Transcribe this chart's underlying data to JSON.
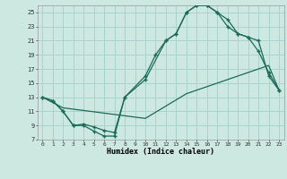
{
  "xlabel": "Humidex (Indice chaleur)",
  "background_color": "#cce8e0",
  "grid_color": "#a8d4cc",
  "line_color": "#1a6b5a",
  "xlim": [
    -0.5,
    23.5
  ],
  "ylim": [
    7,
    26
  ],
  "xticks": [
    0,
    1,
    2,
    3,
    4,
    5,
    6,
    7,
    8,
    9,
    10,
    11,
    12,
    13,
    14,
    15,
    16,
    17,
    18,
    19,
    20,
    21,
    22,
    23
  ],
  "yticks": [
    7,
    9,
    11,
    13,
    15,
    17,
    19,
    21,
    23,
    25
  ],
  "line1_x": [
    0,
    1,
    2,
    3,
    4,
    5,
    6,
    7,
    8,
    10,
    11,
    12,
    13,
    14,
    15,
    16,
    17,
    18,
    19,
    20,
    21,
    22,
    23
  ],
  "line1_y": [
    13,
    12.5,
    11,
    9,
    9,
    8.2,
    7.5,
    7.5,
    13,
    16,
    19,
    21,
    22,
    25,
    26,
    26,
    25,
    24,
    22,
    21.5,
    19.5,
    16.5,
    14
  ],
  "line2_x": [
    0,
    2,
    10,
    14,
    15,
    16,
    17,
    18,
    19,
    20,
    21,
    22,
    23
  ],
  "line2_y": [
    13,
    11.5,
    10,
    13.5,
    14,
    14.5,
    15,
    15.5,
    16,
    16.5,
    17,
    17.5,
    14
  ],
  "line3_x": [
    0,
    1,
    2,
    3,
    4,
    5,
    6,
    7,
    8,
    10,
    12,
    13,
    14,
    15,
    16,
    17,
    18,
    19,
    20,
    21,
    22,
    23
  ],
  "line3_y": [
    13,
    12.5,
    11,
    9,
    9.2,
    8.8,
    8.3,
    8.0,
    13,
    15.5,
    21,
    22,
    25,
    26,
    26,
    25,
    23,
    22,
    21.5,
    21,
    16,
    14
  ]
}
